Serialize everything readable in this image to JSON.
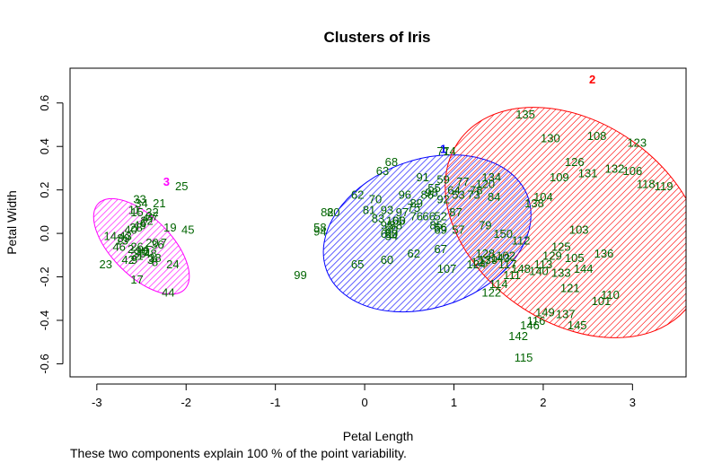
{
  "chart_data": {
    "type": "scatter",
    "title": "Clusters of Iris",
    "xlabel": "Petal Length",
    "ylabel": "Petal Width",
    "xlim": [
      -3.3,
      3.6
    ],
    "ylim": [
      -0.66,
      0.76
    ],
    "xticks": [
      -3,
      -2,
      -1,
      0,
      1,
      2,
      3
    ],
    "yticks": [
      -0.6,
      -0.4,
      -0.2,
      0.0,
      0.2,
      0.4,
      0.6
    ],
    "ytick_labels": [
      "-0.6",
      "-0.4",
      "-0.2",
      "0.0",
      "0.2",
      "0.4",
      "0.6"
    ],
    "point_color": "#006400",
    "clusters": [
      {
        "label": "1",
        "color": "#0000ff",
        "ellipse": {
          "cx": 0.7,
          "cy": 0.0,
          "rx": 1.2,
          "ry": 0.34,
          "angle_deg": 20
        },
        "label_pos": [
          0.88,
          0.39
        ]
      },
      {
        "label": "2",
        "color": "#ff0000",
        "ellipse": {
          "cx": 2.35,
          "cy": 0.05,
          "rx": 1.12,
          "ry": 0.65,
          "angle_deg": 55
        },
        "label_pos": [
          2.55,
          0.71
        ]
      },
      {
        "label": "3",
        "color": "#ff00ff",
        "ellipse": {
          "cx": -2.5,
          "cy": -0.06,
          "rx": 0.33,
          "ry": 0.28,
          "angle_deg": 45
        },
        "label_pos": [
          -2.22,
          0.24
        ]
      }
    ],
    "points": [
      {
        "id": "135",
        "x": 1.8,
        "y": 0.55
      },
      {
        "id": "130",
        "x": 2.08,
        "y": 0.44
      },
      {
        "id": "108",
        "x": 2.6,
        "y": 0.45
      },
      {
        "id": "123",
        "x": 3.05,
        "y": 0.42
      },
      {
        "id": "126",
        "x": 2.35,
        "y": 0.33
      },
      {
        "id": "132",
        "x": 2.8,
        "y": 0.3
      },
      {
        "id": "106",
        "x": 3.0,
        "y": 0.29
      },
      {
        "id": "131",
        "x": 2.5,
        "y": 0.28
      },
      {
        "id": "109",
        "x": 2.18,
        "y": 0.26
      },
      {
        "id": "118",
        "x": 3.15,
        "y": 0.23
      },
      {
        "id": "119",
        "x": 3.35,
        "y": 0.22
      },
      {
        "id": "104",
        "x": 2.0,
        "y": 0.17
      },
      {
        "id": "138",
        "x": 1.9,
        "y": 0.14
      },
      {
        "id": "103",
        "x": 2.4,
        "y": 0.02
      },
      {
        "id": "112",
        "x": 1.75,
        "y": -0.03
      },
      {
        "id": "125",
        "x": 2.2,
        "y": -0.06
      },
      {
        "id": "136",
        "x": 2.68,
        "y": -0.09
      },
      {
        "id": "105",
        "x": 2.35,
        "y": -0.11
      },
      {
        "id": "129",
        "x": 2.1,
        "y": -0.1
      },
      {
        "id": "113",
        "x": 2.0,
        "y": -0.14
      },
      {
        "id": "144",
        "x": 2.45,
        "y": -0.16
      },
      {
        "id": "140",
        "x": 1.95,
        "y": -0.17
      },
      {
        "id": "133",
        "x": 2.2,
        "y": -0.18
      },
      {
        "id": "148",
        "x": 1.75,
        "y": -0.16
      },
      {
        "id": "117",
        "x": 1.6,
        "y": -0.14
      },
      {
        "id": "111",
        "x": 1.65,
        "y": -0.19
      },
      {
        "id": "121",
        "x": 2.3,
        "y": -0.25
      },
      {
        "id": "114",
        "x": 1.5,
        "y": -0.23
      },
      {
        "id": "122",
        "x": 1.42,
        "y": -0.27
      },
      {
        "id": "110",
        "x": 2.75,
        "y": -0.28
      },
      {
        "id": "101",
        "x": 2.65,
        "y": -0.31
      },
      {
        "id": "149",
        "x": 2.02,
        "y": -0.36
      },
      {
        "id": "137",
        "x": 2.25,
        "y": -0.37
      },
      {
        "id": "116",
        "x": 1.92,
        "y": -0.4
      },
      {
        "id": "146",
        "x": 1.85,
        "y": -0.42
      },
      {
        "id": "145",
        "x": 2.38,
        "y": -0.42
      },
      {
        "id": "142",
        "x": 1.72,
        "y": -0.47
      },
      {
        "id": "115",
        "x": 1.78,
        "y": -0.57
      },
      {
        "id": "128",
        "x": 1.35,
        "y": -0.09
      },
      {
        "id": "139",
        "x": 1.38,
        "y": -0.12
      },
      {
        "id": "102",
        "x": 1.58,
        "y": -0.1
      },
      {
        "id": "143",
        "x": 1.52,
        "y": -0.11
      },
      {
        "id": "150",
        "x": 1.55,
        "y": 0.0
      },
      {
        "id": "127",
        "x": 1.3,
        "y": -0.13
      },
      {
        "id": "124",
        "x": 1.25,
        "y": -0.14
      },
      {
        "id": "120",
        "x": 1.35,
        "y": 0.23
      },
      {
        "id": "134",
        "x": 1.42,
        "y": 0.26
      },
      {
        "id": "84",
        "x": 1.45,
        "y": 0.17
      },
      {
        "id": "73",
        "x": 1.22,
        "y": 0.18
      },
      {
        "id": "78",
        "x": 1.25,
        "y": 0.2
      },
      {
        "id": "71",
        "x": 0.88,
        "y": 0.38
      },
      {
        "id": "74",
        "x": 0.95,
        "y": 0.38
      },
      {
        "id": "68",
        "x": 0.3,
        "y": 0.33
      },
      {
        "id": "63",
        "x": 0.2,
        "y": 0.29
      },
      {
        "id": "91",
        "x": 0.65,
        "y": 0.26
      },
      {
        "id": "59",
        "x": 0.88,
        "y": 0.25
      },
      {
        "id": "77",
        "x": 1.1,
        "y": 0.24
      },
      {
        "id": "55",
        "x": 0.78,
        "y": 0.21
      },
      {
        "id": "64",
        "x": 1.0,
        "y": 0.2
      },
      {
        "id": "98",
        "x": 0.75,
        "y": 0.19
      },
      {
        "id": "62",
        "x": -0.08,
        "y": 0.18
      },
      {
        "id": "96",
        "x": 0.45,
        "y": 0.18
      },
      {
        "id": "86",
        "x": 0.7,
        "y": 0.18
      },
      {
        "id": "92",
        "x": 0.88,
        "y": 0.16
      },
      {
        "id": "53",
        "x": 1.05,
        "y": 0.18
      },
      {
        "id": "70",
        "x": 0.12,
        "y": 0.16
      },
      {
        "id": "89",
        "x": 0.58,
        "y": 0.14
      },
      {
        "id": "75",
        "x": 0.55,
        "y": 0.12
      },
      {
        "id": "81",
        "x": 0.05,
        "y": 0.11
      },
      {
        "id": "93",
        "x": 0.25,
        "y": 0.11
      },
      {
        "id": "97",
        "x": 0.42,
        "y": 0.1
      },
      {
        "id": "66",
        "x": 0.72,
        "y": 0.08
      },
      {
        "id": "87",
        "x": 1.02,
        "y": 0.1
      },
      {
        "id": "80",
        "x": -0.35,
        "y": 0.1
      },
      {
        "id": "82",
        "x": -0.42,
        "y": 0.1
      },
      {
        "id": "52",
        "x": 0.85,
        "y": 0.08
      },
      {
        "id": "76",
        "x": 0.58,
        "y": 0.08
      },
      {
        "id": "65",
        "x": 0.38,
        "y": 0.06
      },
      {
        "id": "100",
        "x": 0.35,
        "y": 0.06
      },
      {
        "id": "83",
        "x": 0.15,
        "y": 0.07
      },
      {
        "id": "88",
        "x": 0.35,
        "y": 0.04
      },
      {
        "id": "95",
        "x": 0.25,
        "y": 0.04
      },
      {
        "id": "60",
        "x": 0.3,
        "y": 0.02
      },
      {
        "id": "61",
        "x": 0.25,
        "y": 0.0
      },
      {
        "id": "56",
        "x": 0.85,
        "y": 0.03
      },
      {
        "id": "85",
        "x": 0.8,
        "y": 0.04
      },
      {
        "id": "69",
        "x": 0.85,
        "y": 0.02
      },
      {
        "id": "57",
        "x": 1.05,
        "y": 0.02
      },
      {
        "id": "79",
        "x": 1.35,
        "y": 0.04
      },
      {
        "id": "58",
        "x": -0.5,
        "y": 0.03
      },
      {
        "id": "94",
        "x": -0.5,
        "y": 0.01
      },
      {
        "id": "90",
        "x": 0.3,
        "y": 0.0
      },
      {
        "id": "54",
        "x": 0.3,
        "y": -0.01
      },
      {
        "id": "67",
        "x": 0.85,
        "y": -0.07
      },
      {
        "id": "62",
        "x": 0.55,
        "y": -0.09
      },
      {
        "id": "60",
        "x": 0.25,
        "y": -0.12
      },
      {
        "id": "65",
        "x": -0.08,
        "y": -0.14
      },
      {
        "id": "107",
        "x": 0.92,
        "y": -0.16
      },
      {
        "id": "99",
        "x": -0.72,
        "y": -0.19
      },
      {
        "id": "25",
        "x": -2.05,
        "y": 0.22
      },
      {
        "id": "21",
        "x": -2.3,
        "y": 0.14
      },
      {
        "id": "33",
        "x": -2.52,
        "y": 0.16
      },
      {
        "id": "34",
        "x": -2.5,
        "y": 0.14
      },
      {
        "id": "11",
        "x": -2.58,
        "y": 0.11
      },
      {
        "id": "15",
        "x": -2.55,
        "y": 0.1
      },
      {
        "id": "32",
        "x": -2.38,
        "y": 0.1
      },
      {
        "id": "37",
        "x": -2.38,
        "y": 0.08
      },
      {
        "id": "47",
        "x": -2.42,
        "y": 0.07
      },
      {
        "id": "22",
        "x": -2.44,
        "y": 0.06
      },
      {
        "id": "6",
        "x": -2.48,
        "y": 0.05
      },
      {
        "id": "49",
        "x": -2.52,
        "y": 0.04
      },
      {
        "id": "28",
        "x": -2.56,
        "y": 0.03
      },
      {
        "id": "40",
        "x": -2.62,
        "y": 0.02
      },
      {
        "id": "19",
        "x": -2.18,
        "y": 0.03
      },
      {
        "id": "45",
        "x": -1.98,
        "y": 0.02
      },
      {
        "id": "14",
        "x": -2.85,
        "y": -0.01
      },
      {
        "id": "39",
        "x": -2.7,
        "y": -0.02
      },
      {
        "id": "13",
        "x": -2.72,
        "y": -0.03
      },
      {
        "id": "43",
        "x": -2.68,
        "y": -0.01
      },
      {
        "id": "20",
        "x": -2.38,
        "y": -0.04
      },
      {
        "id": "46",
        "x": -2.75,
        "y": -0.06
      },
      {
        "id": "2",
        "x": -2.62,
        "y": -0.07
      },
      {
        "id": "26",
        "x": -2.55,
        "y": -0.06
      },
      {
        "id": "10",
        "x": -2.48,
        "y": -0.08
      },
      {
        "id": "35",
        "x": -2.52,
        "y": -0.09
      },
      {
        "id": "31",
        "x": -2.55,
        "y": -0.1
      },
      {
        "id": "30",
        "x": -2.5,
        "y": -0.08
      },
      {
        "id": "4",
        "x": -2.45,
        "y": -0.07
      },
      {
        "id": "48",
        "x": -2.4,
        "y": -0.09
      },
      {
        "id": "36",
        "x": -2.32,
        "y": -0.05
      },
      {
        "id": "7",
        "x": -2.25,
        "y": -0.04
      },
      {
        "id": "42",
        "x": -2.65,
        "y": -0.12
      },
      {
        "id": "9",
        "x": -2.58,
        "y": -0.12
      },
      {
        "id": "3",
        "x": -2.4,
        "y": -0.12
      },
      {
        "id": "38",
        "x": -2.35,
        "y": -0.11
      },
      {
        "id": "8",
        "x": -2.35,
        "y": -0.13
      },
      {
        "id": "24",
        "x": -2.15,
        "y": -0.14
      },
      {
        "id": "23",
        "x": -2.9,
        "y": -0.14
      },
      {
        "id": "17",
        "x": -2.55,
        "y": -0.21
      },
      {
        "id": "44",
        "x": -2.2,
        "y": -0.27
      }
    ]
  },
  "footnote": "These two components explain 100 % of the point variability."
}
